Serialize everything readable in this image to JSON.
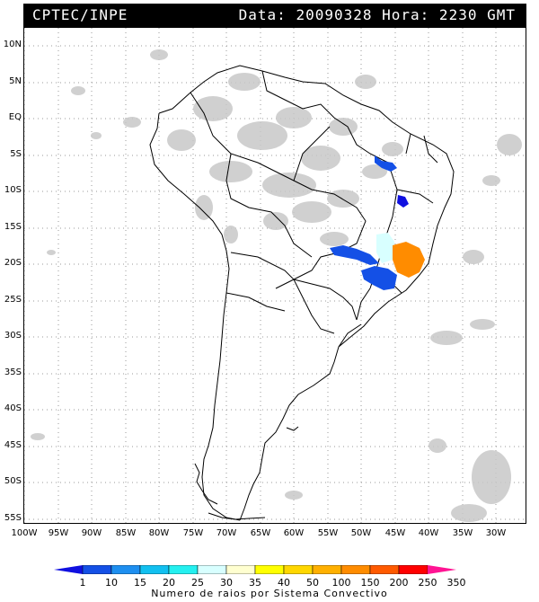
{
  "header": {
    "source": "CPTEC/INPE",
    "info": "Data: 20090328 Hora: 2230 GMT"
  },
  "axes": {
    "lat_labels": [
      "10N",
      "5N",
      "EQ",
      "5S",
      "10S",
      "15S",
      "20S",
      "25S",
      "30S",
      "35S",
      "40S",
      "45S",
      "50S",
      "55S"
    ],
    "lon_labels": [
      "100W",
      "95W",
      "90W",
      "85W",
      "80W",
      "75W",
      "70W",
      "65W",
      "60W",
      "55W",
      "50W",
      "45W",
      "40W",
      "35W",
      "30W"
    ]
  },
  "legend": {
    "ticks": [
      "1",
      "10",
      "15",
      "20",
      "25",
      "30",
      "35",
      "40",
      "50",
      "100",
      "150",
      "200",
      "250",
      "350"
    ],
    "colors": [
      "#1010e0",
      "#1450e6",
      "#1e8ff0",
      "#12c0f0",
      "#24f0f0",
      "#d8ffff",
      "#ffffd0",
      "#ffff00",
      "#ffd700",
      "#ffb000",
      "#ff8c00",
      "#ff5a00",
      "#ff0000",
      "#ff1493"
    ],
    "title": "Numero de raios por Sistema Convectivo"
  },
  "systems": [
    {
      "name": "system-nordeste-north",
      "color": "#1450e6"
    },
    {
      "name": "system-bahia",
      "color": "#1010e0"
    },
    {
      "name": "system-goias-band",
      "color": "#1450e6"
    },
    {
      "name": "system-minas-light",
      "color": "#d8ffff"
    },
    {
      "name": "system-minas-orange",
      "color": "#ff8c00"
    },
    {
      "name": "system-sao-paulo",
      "color": "#1450e6"
    }
  ],
  "colors": {
    "cloud": "#c8c8c8",
    "grid": "#9a9a9a",
    "coast": "#000000"
  }
}
